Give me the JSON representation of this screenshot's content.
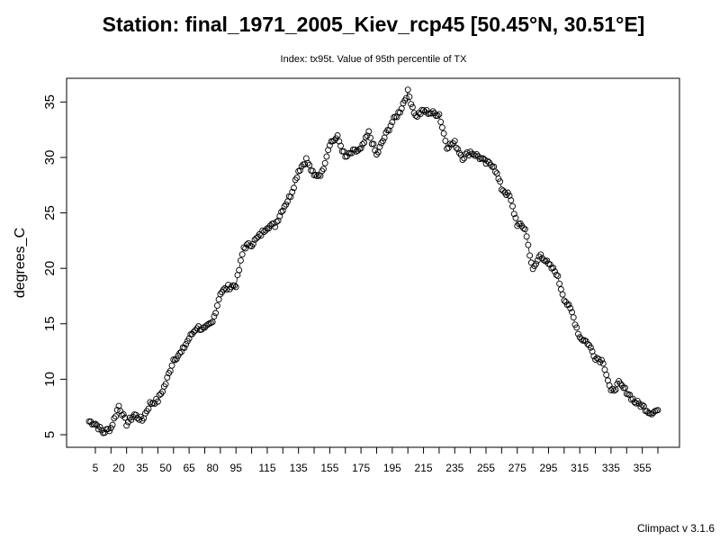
{
  "header": {
    "title": "Station: final_1971_2005_Kiev_rcp45 [50.45°N, 30.51°E]",
    "subtitle": "Index: tx95t. Value of 95th percentile of TX"
  },
  "footer": {
    "credit": "Climpact v 3.1.6"
  },
  "chart_data": {
    "type": "line",
    "style": "points-and-line-segments (R type='b')",
    "title": "",
    "xlabel": "",
    "ylabel": "degrees_C",
    "xlim": [
      1,
      365
    ],
    "ylim": [
      5,
      36
    ],
    "xticks": [
      5,
      20,
      35,
      50,
      65,
      80,
      95,
      115,
      135,
      155,
      175,
      195,
      215,
      235,
      255,
      275,
      295,
      315,
      335,
      355
    ],
    "yticks": [
      5,
      10,
      15,
      20,
      25,
      30,
      35
    ],
    "grid": false,
    "legend": "none",
    "colors": {
      "points": "#000000",
      "axis": "#000000",
      "background": "#ffffff"
    },
    "anchors": {
      "x": [
        1,
        5,
        10,
        15,
        20,
        25,
        30,
        35,
        40,
        45,
        50,
        55,
        60,
        65,
        70,
        75,
        80,
        85,
        90,
        95,
        100,
        105,
        110,
        115,
        120,
        125,
        130,
        135,
        140,
        145,
        150,
        155,
        160,
        165,
        170,
        175,
        180,
        185,
        190,
        195,
        200,
        205,
        210,
        215,
        220,
        225,
        230,
        235,
        240,
        245,
        250,
        255,
        260,
        265,
        270,
        275,
        280,
        285,
        290,
        295,
        300,
        305,
        310,
        315,
        320,
        325,
        330,
        335,
        340,
        345,
        350,
        355,
        360,
        365
      ],
      "y": [
        6.2,
        6.0,
        5.2,
        5.6,
        7.6,
        6.0,
        6.8,
        6.3,
        7.8,
        8.1,
        9.6,
        11.8,
        12.4,
        13.7,
        14.7,
        14.5,
        15.1,
        17.8,
        18.3,
        18.5,
        21.9,
        22.2,
        22.9,
        23.8,
        23.9,
        25.4,
        26.6,
        28.8,
        29.8,
        28.3,
        28.6,
        31.3,
        31.8,
        30.0,
        30.5,
        30.7,
        32.2,
        30.2,
        31.8,
        33.2,
        34.2,
        35.9,
        33.7,
        34.2,
        34.0,
        33.9,
        31.0,
        31.3,
        30.0,
        30.5,
        30.1,
        29.5,
        29.3,
        27.2,
        26.5,
        24.0,
        23.6,
        19.8,
        21.3,
        20.3,
        19.6,
        17.3,
        16.0,
        13.8,
        13.3,
        12.0,
        11.6,
        8.8,
        9.6,
        8.9,
        8.0,
        7.6,
        7.0,
        7.2
      ]
    }
  }
}
